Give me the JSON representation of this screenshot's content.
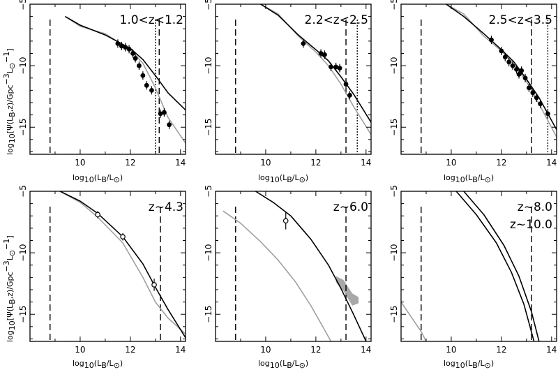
{
  "figure": {
    "y_label_main": "log",
    "y_label_sub": "10",
    "y_label_rest": "[Ψ(L",
    "y_label_sub2": "B",
    "y_label_rest2": ",z)/Gpc",
    "y_label_sup": "−3",
    "y_label_rest3": "L",
    "y_label_sub3": "⊙",
    "y_label_sup2": "−1",
    "y_label_end": "]",
    "x_label_main": "log",
    "x_label_sub": "10",
    "x_label_rest": "(L",
    "x_label_sub2": "B",
    "x_label_rest2": "/L",
    "x_label_sub3": "⊙",
    "x_label_end": ")"
  },
  "colors": {
    "black_curve": "#000000",
    "gray_curve": "#a0a0a0",
    "band": "#a8a8a8"
  },
  "chart_data": [
    {
      "type": "line",
      "label": "1.0<z<1.2",
      "xlim": [
        8,
        14.2
      ],
      "ylim": [
        -17.2,
        -5
      ],
      "xticks": [
        10,
        12,
        14
      ],
      "yticks": [
        -5,
        -10,
        -15
      ],
      "series": [
        {
          "style": "black",
          "x": [
            9.4,
            10,
            11,
            12,
            12.5,
            13,
            13.5,
            14.2
          ],
          "y": [
            -6.0,
            -6.7,
            -7.5,
            -8.6,
            -9.5,
            -10.8,
            -12.2,
            -13.6
          ]
        },
        {
          "style": "gray",
          "x": [
            9.4,
            10,
            11,
            12,
            12.5,
            13,
            13.5,
            14.2
          ],
          "y": [
            -6.0,
            -6.8,
            -7.4,
            -8.7,
            -9.8,
            -11.8,
            -14.2,
            -16.3
          ]
        }
      ],
      "points": [
        {
          "x": 11.5,
          "y": -8.2
        },
        {
          "x": 11.65,
          "y": -8.4
        },
        {
          "x": 11.8,
          "y": -8.5
        },
        {
          "x": 11.95,
          "y": -8.65
        },
        {
          "x": 12.1,
          "y": -9.0
        },
        {
          "x": 12.2,
          "y": -9.4
        },
        {
          "x": 12.35,
          "y": -10.0
        },
        {
          "x": 12.5,
          "y": -10.8
        },
        {
          "x": 12.65,
          "y": -11.6
        },
        {
          "x": 12.85,
          "y": -12.0
        },
        {
          "x": 13.2,
          "y": -13.9
        },
        {
          "x": 13.35,
          "y": -13.8
        },
        {
          "x": 13.55,
          "y": -14.8
        }
      ],
      "open_points": [],
      "vlines": [
        {
          "x": 8.8,
          "style": "dashed"
        },
        {
          "x": 13.15,
          "style": "dashed"
        },
        {
          "x": 13.0,
          "style": "dotted"
        }
      ]
    },
    {
      "type": "line",
      "label": "2.2<z<2.5",
      "xlim": [
        8,
        14.2
      ],
      "ylim": [
        -17.2,
        -5
      ],
      "xticks": [
        10,
        12,
        14
      ],
      "yticks": [
        -5,
        -10,
        -15
      ],
      "series": [
        {
          "style": "black",
          "x": [
            9.8,
            10.5,
            11.3,
            12,
            12.5,
            13,
            13.5,
            14.2
          ],
          "y": [
            -5.0,
            -5.9,
            -7.5,
            -8.7,
            -9.6,
            -10.9,
            -12.3,
            -14.6
          ]
        },
        {
          "style": "gray",
          "x": [
            9.8,
            10.5,
            11.3,
            12,
            12.5,
            13,
            13.5,
            14.2
          ],
          "y": [
            -5.0,
            -5.8,
            -7.6,
            -8.9,
            -10.0,
            -11.5,
            -13.3,
            -15.6
          ]
        }
      ],
      "points": [
        {
          "x": 11.5,
          "y": -8.2
        },
        {
          "x": 12.2,
          "y": -9.0
        },
        {
          "x": 12.35,
          "y": -9.1
        },
        {
          "x": 12.6,
          "y": -10.1
        },
        {
          "x": 12.8,
          "y": -10.1
        },
        {
          "x": 12.95,
          "y": -10.2
        },
        {
          "x": 13.2,
          "y": -11.5
        },
        {
          "x": 13.35,
          "y": -12.4
        }
      ],
      "open_points": [],
      "vlines": [
        {
          "x": 8.8,
          "style": "dashed"
        },
        {
          "x": 13.2,
          "style": "dashed"
        },
        {
          "x": 13.65,
          "style": "dotted"
        }
      ]
    },
    {
      "type": "line",
      "label": "2.5<z<3.5",
      "xlim": [
        8,
        14.2
      ],
      "ylim": [
        -17.2,
        -5
      ],
      "xticks": [
        10,
        12,
        14
      ],
      "yticks": [
        -5,
        -10,
        -15
      ],
      "series": [
        {
          "style": "black",
          "x": [
            9.8,
            10.5,
            11.3,
            12,
            12.5,
            13,
            13.5,
            14.2
          ],
          "y": [
            -5.0,
            -6.0,
            -7.4,
            -8.7,
            -9.7,
            -11.1,
            -12.6,
            -15.2
          ]
        },
        {
          "style": "gray",
          "x": [
            9.8,
            10.5,
            11.3,
            12,
            12.5,
            13,
            13.5,
            14.2
          ],
          "y": [
            -5.0,
            -5.8,
            -7.6,
            -8.8,
            -9.9,
            -11.3,
            -13.1,
            -15.8
          ]
        }
      ],
      "points": [
        {
          "x": 11.6,
          "y": -7.9
        },
        {
          "x": 12.0,
          "y": -8.8
        },
        {
          "x": 12.15,
          "y": -9.3
        },
        {
          "x": 12.3,
          "y": -9.7
        },
        {
          "x": 12.45,
          "y": -10.0
        },
        {
          "x": 12.6,
          "y": -10.3
        },
        {
          "x": 12.7,
          "y": -10.7
        },
        {
          "x": 12.8,
          "y": -10.4
        },
        {
          "x": 12.95,
          "y": -11.0
        },
        {
          "x": 13.1,
          "y": -11.8
        },
        {
          "x": 13.25,
          "y": -12.2
        },
        {
          "x": 13.4,
          "y": -12.6
        },
        {
          "x": 13.55,
          "y": -13.1
        },
        {
          "x": 13.85,
          "y": -13.9
        }
      ],
      "open_points": [],
      "vlines": [
        {
          "x": 8.8,
          "style": "dashed"
        },
        {
          "x": 13.2,
          "style": "dashed"
        },
        {
          "x": 13.85,
          "style": "dotted"
        }
      ]
    },
    {
      "type": "line",
      "label": "z~4.3",
      "xlim": [
        8,
        14.2
      ],
      "ylim": [
        -17.2,
        -5
      ],
      "xticks": [
        10,
        12,
        14
      ],
      "yticks": [
        -5,
        -10,
        -15
      ],
      "series": [
        {
          "style": "black",
          "x": [
            9.2,
            10,
            10.7,
            11.7,
            12.5,
            13,
            13.5,
            14.2
          ],
          "y": [
            -5.0,
            -5.8,
            -6.8,
            -8.7,
            -10.9,
            -12.8,
            -14.6,
            -16.9
          ]
        },
        {
          "style": "gray",
          "x": [
            9.2,
            10,
            10.7,
            11.7,
            12.5,
            13,
            13.5,
            14.2
          ],
          "y": [
            -5.0,
            -5.9,
            -7.1,
            -9.2,
            -12.0,
            -14.0,
            -15.3,
            -16.6
          ]
        }
      ],
      "points": [],
      "open_points": [
        {
          "x": 10.7,
          "y": -6.9,
          "err": 0.3
        },
        {
          "x": 11.7,
          "y": -8.7,
          "err": 0.3
        },
        {
          "x": 12.95,
          "y": -12.6,
          "err": 0.5
        }
      ],
      "vlines": [
        {
          "x": 8.8,
          "style": "dashed"
        },
        {
          "x": 13.2,
          "style": "dashed"
        }
      ]
    },
    {
      "type": "line",
      "label": "z~6.0",
      "xlim": [
        8,
        14.2
      ],
      "ylim": [
        -17.2,
        -5
      ],
      "xticks": [
        10,
        12,
        14
      ],
      "yticks": [
        -5,
        -10,
        -15
      ],
      "series": [
        {
          "style": "black",
          "x": [
            9.6,
            10.3,
            11,
            11.8,
            12.5,
            13,
            13.5,
            14.0
          ],
          "y": [
            -5.0,
            -5.9,
            -7.0,
            -8.9,
            -11.0,
            -12.9,
            -15.0,
            -17.2
          ]
        },
        {
          "style": "gray",
          "x": [
            8.3,
            9,
            9.8,
            10.5,
            11.2,
            11.8,
            12.3,
            12.6
          ],
          "y": [
            -6.6,
            -7.6,
            -9.1,
            -10.6,
            -12.4,
            -14.3,
            -16.1,
            -17.2
          ]
        }
      ],
      "points": [],
      "open_points": [
        {
          "x": 10.8,
          "y": -7.4,
          "err": 0.7
        }
      ],
      "band": {
        "x": [
          12.8,
          13.1,
          13.45,
          13.7,
          13.7,
          13.45,
          13.1,
          12.8
        ],
        "y": [
          -11.9,
          -12.2,
          -13.3,
          -13.6,
          -14.1,
          -14.3,
          -13.1,
          -12.4
        ]
      },
      "vlines": [
        {
          "x": 8.8,
          "style": "dashed"
        },
        {
          "x": 13.2,
          "style": "dashed"
        }
      ]
    },
    {
      "type": "line",
      "label": "z~8.0",
      "label2": "z~10.0",
      "xlim": [
        8,
        14.2
      ],
      "ylim": [
        -17.2,
        -5
      ],
      "xticks": [
        10,
        12,
        14
      ],
      "yticks": [
        -5,
        -10,
        -15
      ],
      "series": [
        {
          "style": "black",
          "x": [
            10.2,
            11,
            11.8,
            12.4,
            12.9,
            13.3
          ],
          "y": [
            -5.0,
            -6.9,
            -9.2,
            -11.6,
            -14.2,
            -17.2
          ]
        },
        {
          "style": "black",
          "x": [
            10.5,
            11.3,
            12.1,
            12.7,
            13.2,
            13.5
          ],
          "y": [
            -5.0,
            -6.9,
            -9.4,
            -11.9,
            -14.8,
            -17.2
          ]
        },
        {
          "style": "gray",
          "x": [
            8.0,
            8.4,
            8.8,
            9.0
          ],
          "y": [
            -14.0,
            -15.2,
            -16.4,
            -17.2
          ]
        }
      ],
      "points": [],
      "open_points": [],
      "vlines": [
        {
          "x": 8.8,
          "style": "dashed"
        },
        {
          "x": 13.2,
          "style": "dashed"
        }
      ]
    }
  ]
}
